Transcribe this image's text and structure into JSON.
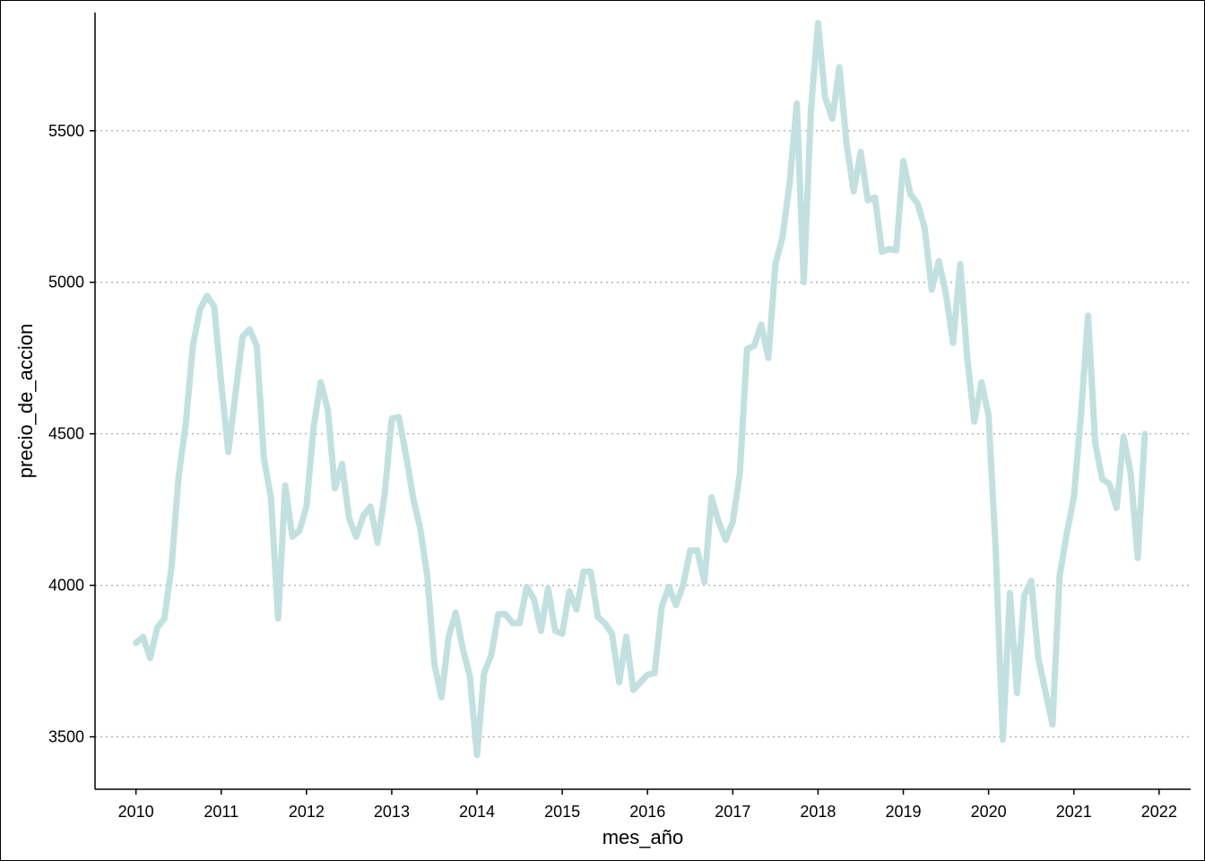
{
  "chart_data": {
    "type": "line",
    "title": "",
    "xlabel": "mes_año",
    "ylabel": "precio_de_accion",
    "xlim": [
      2009.52,
      2022.37
    ],
    "ylim": [
      3327,
      5890
    ],
    "x_ticks": [
      2010,
      2011,
      2012,
      2013,
      2014,
      2015,
      2016,
      2017,
      2018,
      2019,
      2020,
      2021,
      2022
    ],
    "x_tick_labels": [
      "2010",
      "2011",
      "2012",
      "2013",
      "2014",
      "2015",
      "2016",
      "2017",
      "2018",
      "2019",
      "2020",
      "2021",
      "2022"
    ],
    "y_ticks": [
      3500,
      4000,
      4500,
      5000,
      5500
    ],
    "y_tick_labels": [
      "3500",
      "4000",
      "4500",
      "5000",
      "5500"
    ],
    "grid": "horizontal dotted",
    "legend": "none",
    "line_color": "#c2e0e0",
    "grid_color": "#b3b3b3",
    "series": [
      {
        "x": [
          2010.0,
          2010.083,
          2010.167,
          2010.25,
          2010.333,
          2010.417,
          2010.5,
          2010.583,
          2010.667,
          2010.75,
          2010.833,
          2010.917,
          2011.0,
          2011.083,
          2011.167,
          2011.25,
          2011.333,
          2011.417,
          2011.5,
          2011.583,
          2011.667,
          2011.75,
          2011.833,
          2011.917,
          2012.0,
          2012.083,
          2012.167,
          2012.25,
          2012.333,
          2012.417,
          2012.5,
          2012.583,
          2012.667,
          2012.75,
          2012.833,
          2012.917,
          2013.0,
          2013.083,
          2013.167,
          2013.25,
          2013.333,
          2013.417,
          2013.5,
          2013.583,
          2013.667,
          2013.75,
          2013.833,
          2013.917,
          2014.0,
          2014.083,
          2014.167,
          2014.25,
          2014.333,
          2014.417,
          2014.5,
          2014.583,
          2014.667,
          2014.75,
          2014.833,
          2014.917,
          2015.0,
          2015.083,
          2015.167,
          2015.25,
          2015.333,
          2015.417,
          2015.5,
          2015.583,
          2015.667,
          2015.75,
          2015.833,
          2015.917,
          2016.0,
          2016.083,
          2016.167,
          2016.25,
          2016.333,
          2016.417,
          2016.5,
          2016.583,
          2016.667,
          2016.75,
          2016.833,
          2016.917,
          2017.0,
          2017.083,
          2017.167,
          2017.25,
          2017.333,
          2017.417,
          2017.5,
          2017.583,
          2017.667,
          2017.75,
          2017.833,
          2017.917,
          2018.0,
          2018.083,
          2018.167,
          2018.25,
          2018.333,
          2018.417,
          2018.5,
          2018.583,
          2018.667,
          2018.75,
          2018.833,
          2018.917,
          2019.0,
          2019.083,
          2019.167,
          2019.25,
          2019.333,
          2019.417,
          2019.5,
          2019.583,
          2019.667,
          2019.75,
          2019.833,
          2019.917,
          2020.0,
          2020.083,
          2020.167,
          2020.25,
          2020.333,
          2020.417,
          2020.5,
          2020.583,
          2020.667,
          2020.75,
          2020.833,
          2020.917,
          2021.0,
          2021.083,
          2021.167,
          2021.25,
          2021.333,
          2021.417,
          2021.5,
          2021.583,
          2021.667,
          2021.75,
          2021.833
        ],
        "values": [
          3810,
          3830,
          3760,
          3860,
          3890,
          4060,
          4360,
          4530,
          4790,
          4910,
          4955,
          4920,
          4670,
          4440,
          4630,
          4820,
          4845,
          4790,
          4420,
          4290,
          3890,
          4330,
          4160,
          4180,
          4260,
          4520,
          4670,
          4580,
          4320,
          4400,
          4220,
          4160,
          4230,
          4260,
          4140,
          4300,
          4550,
          4555,
          4430,
          4290,
          4190,
          4030,
          3740,
          3630,
          3830,
          3910,
          3790,
          3700,
          3440,
          3710,
          3770,
          3905,
          3905,
          3875,
          3875,
          3995,
          3955,
          3850,
          3990,
          3850,
          3840,
          3980,
          3920,
          4045,
          4045,
          3895,
          3875,
          3840,
          3680,
          3830,
          3655,
          3680,
          3705,
          3710,
          3930,
          3995,
          3935,
          4000,
          4115,
          4115,
          4010,
          4290,
          4210,
          4150,
          4210,
          4370,
          4780,
          4790,
          4860,
          4750,
          5060,
          5150,
          5330,
          5590,
          5000,
          5570,
          5855,
          5610,
          5540,
          5710,
          5460,
          5300,
          5430,
          5270,
          5280,
          5100,
          5110,
          5105,
          5400,
          5290,
          5260,
          5180,
          4975,
          5070,
          4960,
          4800,
          5060,
          4750,
          4540,
          4670,
          4560,
          4120,
          3490,
          3975,
          3645,
          3965,
          4015,
          3760,
          3650,
          3540,
          4030,
          4170,
          4290,
          4560,
          4890,
          4470,
          4350,
          4335,
          4255,
          4490,
          4370,
          4090,
          4500
        ]
      }
    ]
  }
}
